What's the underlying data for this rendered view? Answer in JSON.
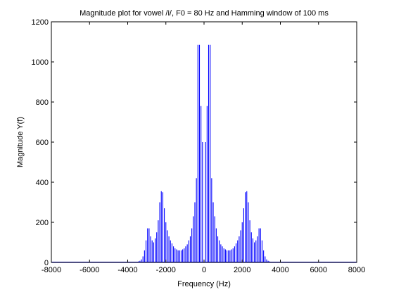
{
  "chart_data": {
    "type": "bar",
    "title": "Magnitude plot for vowel /i/, F0 = 80 Hz and Hamming window of 100 ms",
    "xlabel": "Frequency (Hz)",
    "ylabel": "Magnitude Y(f)",
    "xlim": [
      -8000,
      8000
    ],
    "ylim": [
      0,
      1200
    ],
    "xticks": [
      -8000,
      -6000,
      -4000,
      -2000,
      0,
      2000,
      4000,
      6000,
      8000
    ],
    "xtick_labels": [
      "-8000",
      "-6000",
      "-4000",
      "-2000",
      "0",
      "2000",
      "4000",
      "6000",
      "8000"
    ],
    "yticks": [
      0,
      200,
      400,
      600,
      800,
      1000,
      1200
    ],
    "ytick_labels": [
      "0",
      "200",
      "400",
      "600",
      "800",
      "1000",
      "1200"
    ],
    "grid": false,
    "legend": "none",
    "series_color": "#0000ff",
    "harmonic_spacing_hz": 80,
    "x": [
      80,
      160,
      240,
      320,
      400,
      480,
      560,
      640,
      720,
      800,
      880,
      960,
      1040,
      1120,
      1200,
      1280,
      1360,
      1440,
      1520,
      1600,
      1680,
      1760,
      1840,
      1920,
      2000,
      2080,
      2160,
      2240,
      2320,
      2400,
      2480,
      2560,
      2640,
      2720,
      2800,
      2880,
      2960,
      3040,
      3120,
      3200,
      3280,
      3360,
      3440,
      3520,
      3600,
      3680,
      3760,
      3840
    ],
    "values": [
      600,
      780,
      1085,
      1085,
      420,
      300,
      230,
      170,
      130,
      110,
      90,
      80,
      70,
      65,
      60,
      60,
      60,
      65,
      70,
      80,
      95,
      110,
      130,
      160,
      200,
      270,
      350,
      355,
      300,
      210,
      150,
      120,
      100,
      110,
      130,
      170,
      170,
      110,
      60,
      30,
      15,
      8,
      5,
      3,
      2,
      1,
      1,
      1
    ],
    "symmetric_about_zero": true
  }
}
